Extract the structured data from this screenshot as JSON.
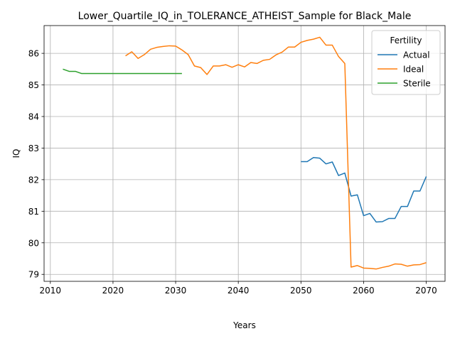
{
  "chart_data": {
    "type": "line",
    "title": "Lower_Quartile_IQ_in_TOLERANCE_ATHEIST_Sample for Black_Male",
    "xlabel": "Years",
    "ylabel": "IQ",
    "xlim": [
      2009,
      2073
    ],
    "ylim": [
      78.78,
      86.88
    ],
    "xticks": [
      2010,
      2020,
      2030,
      2040,
      2050,
      2060,
      2070
    ],
    "yticks": [
      79,
      80,
      81,
      82,
      83,
      84,
      85,
      86
    ],
    "grid": true,
    "legend": {
      "title": "Fertility",
      "position": "top-right"
    },
    "series": [
      {
        "name": "Actual",
        "color": "#1f77b4",
        "x": [
          2050,
          2051,
          2052,
          2053,
          2054,
          2055,
          2056,
          2057,
          2058,
          2059,
          2060,
          2061,
          2062,
          2063,
          2064,
          2065,
          2066,
          2067,
          2068,
          2069,
          2070
        ],
        "y": [
          82.57,
          82.57,
          82.7,
          82.68,
          82.5,
          82.56,
          82.13,
          82.21,
          81.48,
          81.52,
          80.86,
          80.93,
          80.66,
          80.67,
          80.77,
          80.77,
          81.15,
          81.15,
          81.64,
          81.64,
          82.1
        ]
      },
      {
        "name": "Ideal",
        "color": "#ff7f0e",
        "x": [
          2022,
          2023,
          2024,
          2025,
          2026,
          2027,
          2028,
          2029,
          2030,
          2031,
          2032,
          2033,
          2034,
          2035,
          2036,
          2037,
          2038,
          2039,
          2040,
          2041,
          2042,
          2043,
          2044,
          2045,
          2046,
          2047,
          2048,
          2049,
          2050,
          2051,
          2052,
          2053,
          2054,
          2055,
          2056,
          2057,
          2058,
          2059,
          2060,
          2061,
          2062,
          2063,
          2064,
          2065,
          2066,
          2067,
          2068,
          2069,
          2070
        ],
        "y": [
          85.92,
          86.05,
          85.84,
          85.96,
          86.13,
          86.19,
          86.22,
          86.24,
          86.23,
          86.11,
          85.96,
          85.6,
          85.55,
          85.33,
          85.6,
          85.6,
          85.64,
          85.56,
          85.64,
          85.57,
          85.71,
          85.68,
          85.78,
          85.81,
          85.95,
          86.04,
          86.2,
          86.2,
          86.35,
          86.41,
          86.45,
          86.51,
          86.26,
          86.26,
          85.9,
          85.68,
          79.23,
          79.28,
          79.2,
          79.19,
          79.17,
          79.22,
          79.26,
          79.33,
          79.32,
          79.26,
          79.3,
          79.31,
          79.37
        ]
      },
      {
        "name": "Sterile",
        "color": "#2ca02c",
        "x": [
          2012,
          2013,
          2014,
          2015,
          2016,
          2017,
          2018,
          2019,
          2020,
          2021,
          2022,
          2023,
          2024,
          2025,
          2026,
          2027,
          2028,
          2029,
          2030,
          2031
        ],
        "y": [
          85.5,
          85.43,
          85.43,
          85.36,
          85.36,
          85.36,
          85.36,
          85.36,
          85.36,
          85.36,
          85.36,
          85.36,
          85.36,
          85.36,
          85.36,
          85.36,
          85.36,
          85.36,
          85.36,
          85.36
        ]
      }
    ]
  }
}
